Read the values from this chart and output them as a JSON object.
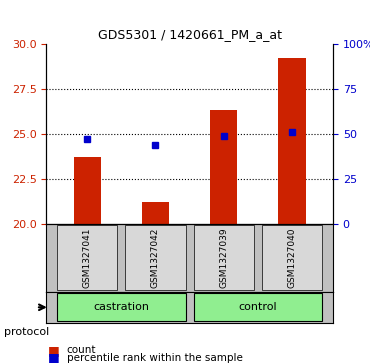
{
  "title": "GDS5301 / 1420661_PM_a_at",
  "samples": [
    "GSM1327041",
    "GSM1327042",
    "GSM1327039",
    "GSM1327040"
  ],
  "groups": [
    "castration",
    "castration",
    "control",
    "control"
  ],
  "group_colors": {
    "castration": "#90EE90",
    "control": "#90EE90"
  },
  "bar_values": [
    23.7,
    21.2,
    26.3,
    29.2
  ],
  "percentile_values": [
    47,
    44,
    49,
    51
  ],
  "bar_color": "#CC2200",
  "dot_color": "#0000CC",
  "ylim_left": [
    20,
    30
  ],
  "ylim_right": [
    0,
    100
  ],
  "yticks_left": [
    20,
    22.5,
    25,
    27.5,
    30
  ],
  "yticks_right": [
    0,
    25,
    50,
    75,
    100
  ],
  "grid_color": "#000000",
  "bg_color": "#FFFFFF",
  "plot_bg": "#FFFFFF",
  "bar_width": 0.4,
  "legend_count_label": "count",
  "legend_pct_label": "percentile rank within the sample",
  "protocol_label": "protocol",
  "left_axis_color": "#CC2200",
  "right_axis_color": "#0000CC"
}
